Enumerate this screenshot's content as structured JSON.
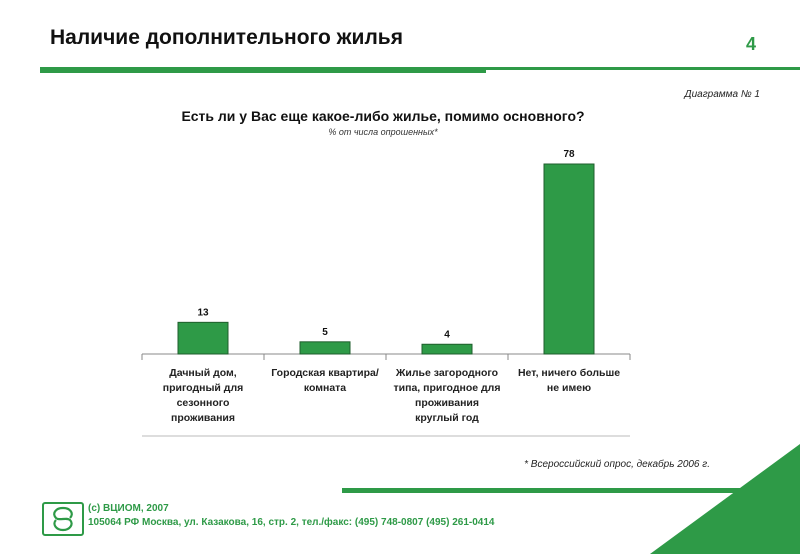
{
  "header": {
    "title": "Наличие дополнительного жилья",
    "page_number": "4"
  },
  "diagram_label": "Диаграмма № 1",
  "colors": {
    "accent": "#2e9a47",
    "bar": "#2e9a47",
    "bar_edge": "#1f5e2c"
  },
  "chart_data": {
    "type": "bar",
    "title": "Есть ли у Вас еще какое-либо жилье, помимо основного?",
    "subtitle": "% от числа опрошенных*",
    "categories": [
      [
        "Дачный дом,",
        "пригодный для",
        "сезонного",
        "проживания"
      ],
      [
        "Городская квартира/",
        "комната"
      ],
      [
        "Жилье загородного",
        "типа, пригодное для",
        "проживания",
        "круглый год"
      ],
      [
        "Нет, ничего больше",
        "не имею"
      ]
    ],
    "values": [
      13,
      5,
      4,
      78
    ],
    "data_labels": [
      "13",
      "5",
      "4",
      "78"
    ],
    "ylim": [
      0,
      80
    ],
    "grid": false,
    "xlabel": "",
    "ylabel": ""
  },
  "footnote": "* Всероссийский опрос, декабрь 2006 г.",
  "footer": {
    "line1": "(c) ВЦИОМ, 2007",
    "line2": "105064 РФ Москва, ул. Казакова, 16, стр. 2, тел./факс: (495) 748-0807 (495) 261-0414",
    "logo_text": "ВЦИОМ"
  }
}
